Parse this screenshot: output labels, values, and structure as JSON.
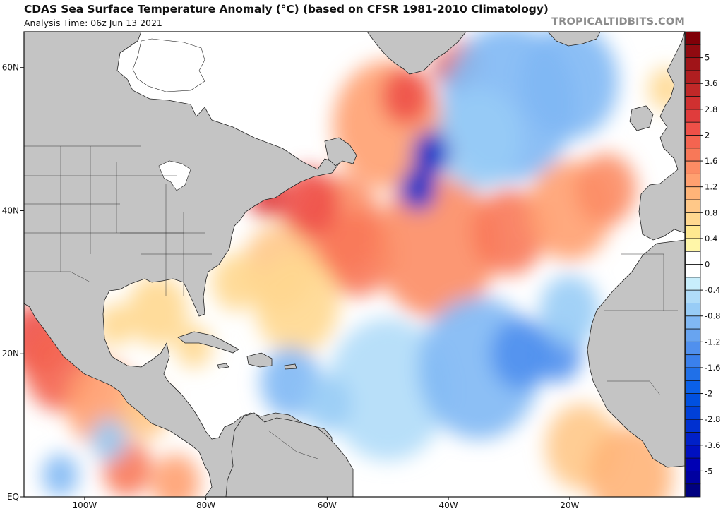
{
  "header": {
    "title": "CDAS Sea Surface Temperature Anomaly (°C) (based on CFSR 1981-2010 Climatology)",
    "subtitle": "Analysis Time: 06z Jun 13 2021",
    "credit": "TROPICALTIDBITS.COM"
  },
  "chart_data": {
    "type": "heatmap",
    "title": "CDAS Sea Surface Temperature Anomaly (°C) (based on CFSR 1981-2010 Climatology)",
    "subtitle": "Analysis Time: 06z Jun 13 2021",
    "units": "°C",
    "region": "North Atlantic",
    "lon_range": [
      -110,
      -1
    ],
    "lat_range": [
      0,
      65
    ],
    "x_ticks": [
      {
        "value": -100,
        "label": "100W"
      },
      {
        "value": -80,
        "label": "80W"
      },
      {
        "value": -60,
        "label": "60W"
      },
      {
        "value": -40,
        "label": "40W"
      },
      {
        "value": -20,
        "label": "20W"
      }
    ],
    "y_ticks": [
      {
        "value": 60,
        "label": "60N"
      },
      {
        "value": 40,
        "label": "40N"
      },
      {
        "value": 20,
        "label": "20N"
      },
      {
        "value": 0,
        "label": "EQ"
      }
    ],
    "land_color": "#c4c4c4",
    "ocean_base_color": "#ffffff",
    "colorbar": {
      "colors": [
        "#000080",
        "#0000a0",
        "#0000b4",
        "#0010c0",
        "#0020c8",
        "#0030d0",
        "#0040d8",
        "#0050e0",
        "#0a60e8",
        "#2070e8",
        "#3a80ec",
        "#5090ee",
        "#68a4f0",
        "#80b8f4",
        "#98ccf6",
        "#b0dcf8",
        "#c8eefc",
        "#ffffff",
        "#ffffff",
        "#fff6a8",
        "#ffe890",
        "#ffd890",
        "#ffc888",
        "#ffb478",
        "#ffa070",
        "#fc8c64",
        "#f87858",
        "#f46450",
        "#ee5048",
        "#e03c3c",
        "#d03030",
        "#c02828",
        "#b01e20",
        "#a01418",
        "#900a10",
        "#800008"
      ],
      "labels": [
        {
          "value": "5",
          "index": 33
        },
        {
          "value": "3.6",
          "index": 31
        },
        {
          "value": "2.8",
          "index": 29
        },
        {
          "value": "2",
          "index": 27
        },
        {
          "value": "1.6",
          "index": 25
        },
        {
          "value": "1.2",
          "index": 23
        },
        {
          "value": "0.8",
          "index": 21
        },
        {
          "value": "0.4",
          "index": 19
        },
        {
          "value": "0",
          "index": 17
        },
        {
          "value": "-0.4",
          "index": 15
        },
        {
          "value": "-0.8",
          "index": 13
        },
        {
          "value": "-1.2",
          "index": 11
        },
        {
          "value": "-1.6",
          "index": 9
        },
        {
          "value": "-2",
          "index": 7
        },
        {
          "value": "-2.8",
          "index": 5
        },
        {
          "value": "-3.6",
          "index": 3
        },
        {
          "value": "-5",
          "index": 1
        }
      ]
    },
    "anomalies": [
      {
        "lon": -50,
        "lat": 52,
        "r": 9,
        "v": 1.2
      },
      {
        "lon": -47,
        "lat": 56,
        "r": 4,
        "v": 2.0
      },
      {
        "lon": -41,
        "lat": 49,
        "r": 3,
        "v": 2.2
      },
      {
        "lon": -44,
        "lat": 45,
        "r": 2,
        "v": 2.6
      },
      {
        "lon": -40,
        "lat": 60,
        "r": 2.5,
        "v": 2.6
      },
      {
        "lon": -38,
        "lat": 61,
        "r": 3,
        "v": 1.6
      },
      {
        "lon": -58,
        "lat": 38,
        "r": 7,
        "v": 1.4
      },
      {
        "lon": -63,
        "lat": 41,
        "r": 5,
        "v": 2.0
      },
      {
        "lon": -70,
        "lat": 42,
        "r": 3,
        "v": 2.2
      },
      {
        "lon": -55,
        "lat": 34,
        "r": 6,
        "v": 1.6
      },
      {
        "lon": -42,
        "lat": 35,
        "r": 10,
        "v": 1.4
      },
      {
        "lon": -30,
        "lat": 37,
        "r": 6,
        "v": 1.6
      },
      {
        "lon": -20,
        "lat": 40,
        "r": 7,
        "v": 1.2
      },
      {
        "lon": -14,
        "lat": 43,
        "r": 5,
        "v": 1.4
      },
      {
        "lon": -68,
        "lat": 32,
        "r": 6,
        "v": 0.8
      },
      {
        "lon": -75,
        "lat": 30,
        "r": 4,
        "v": 0.6
      },
      {
        "lon": -65,
        "lat": 27,
        "r": 7,
        "v": 0.5
      },
      {
        "lon": -88,
        "lat": 26,
        "r": 5,
        "v": 0.6
      },
      {
        "lon": -95,
        "lat": 24,
        "r": 3,
        "v": 0.6
      },
      {
        "lon": -82,
        "lat": 21,
        "r": 3,
        "v": 0.5
      },
      {
        "lon": -108,
        "lat": 22,
        "r": 5,
        "v": 2.0
      },
      {
        "lon": -104,
        "lat": 18,
        "r": 6,
        "v": 1.8
      },
      {
        "lon": -97,
        "lat": 13,
        "r": 6,
        "v": 1.2
      },
      {
        "lon": -90,
        "lat": 12,
        "r": 4,
        "v": 0.8
      },
      {
        "lon": -93,
        "lat": 4,
        "r": 4,
        "v": 1.6
      },
      {
        "lon": -85,
        "lat": 2,
        "r": 4,
        "v": 1.2
      },
      {
        "lon": -18,
        "lat": 7,
        "r": 6,
        "v": 0.8
      },
      {
        "lon": -10,
        "lat": 3,
        "r": 7,
        "v": 1.0
      },
      {
        "lon": -4,
        "lat": 57,
        "r": 3,
        "v": 0.6
      },
      {
        "lon": -50,
        "lat": 15,
        "r": 10,
        "v": -0.5
      },
      {
        "lon": -35,
        "lat": 18,
        "r": 10,
        "v": -0.8
      },
      {
        "lon": -28,
        "lat": 20,
        "r": 5,
        "v": -1.2
      },
      {
        "lon": -22,
        "lat": 20,
        "r": 4,
        "v": -1.2
      },
      {
        "lon": -20,
        "lat": 26,
        "r": 5,
        "v": -0.6
      },
      {
        "lon": -66,
        "lat": 16,
        "r": 5,
        "v": -0.9
      },
      {
        "lon": -60,
        "lat": 13,
        "r": 4,
        "v": -0.6
      },
      {
        "lon": -30,
        "lat": 55,
        "r": 11,
        "v": -0.8
      },
      {
        "lon": -20,
        "lat": 58,
        "r": 8,
        "v": -0.9
      },
      {
        "lon": -35,
        "lat": 50,
        "r": 7,
        "v": -0.7
      },
      {
        "lon": -43,
        "lat": 48,
        "r": 3,
        "v": -3.0
      },
      {
        "lon": -45,
        "lat": 43,
        "r": 3,
        "v": -2.8
      },
      {
        "lon": -104,
        "lat": 3,
        "r": 3,
        "v": -0.8
      },
      {
        "lon": -96,
        "lat": 8,
        "r": 3,
        "v": -0.6
      }
    ]
  }
}
